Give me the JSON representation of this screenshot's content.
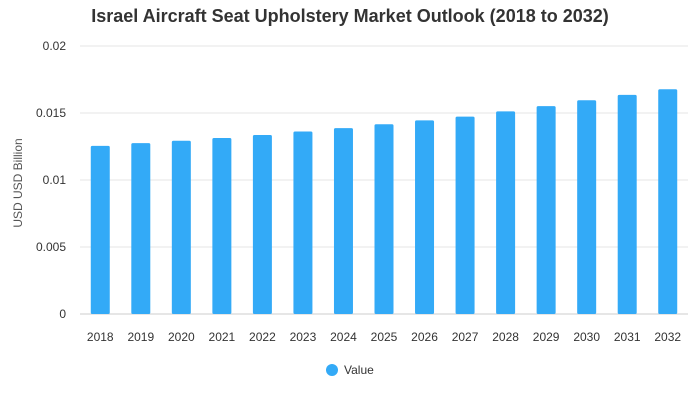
{
  "chart_data": {
    "type": "bar",
    "title": "Israel Aircraft Seat Upholstery Market Outlook (2018 to 2032)",
    "xlabel": "",
    "ylabel": "USD USD Billion",
    "ylim": [
      0,
      0.02
    ],
    "yticks": [
      "0",
      "0.005",
      "0.01",
      "0.015",
      "0.02"
    ],
    "ytick_values": [
      0,
      0.005,
      0.01,
      0.015,
      0.02
    ],
    "categories": [
      "2018",
      "2019",
      "2020",
      "2021",
      "2022",
      "2023",
      "2024",
      "2025",
      "2026",
      "2027",
      "2028",
      "2029",
      "2030",
      "2031",
      "2032"
    ],
    "series": [
      {
        "name": "Value",
        "color": "#33aaf7",
        "values": [
          0.01255,
          0.01275,
          0.01293,
          0.01313,
          0.01336,
          0.01362,
          0.01387,
          0.01416,
          0.01445,
          0.01473,
          0.01512,
          0.01551,
          0.01595,
          0.01635,
          0.01677
        ]
      }
    ],
    "legend_position": "bottom",
    "grid": true
  }
}
